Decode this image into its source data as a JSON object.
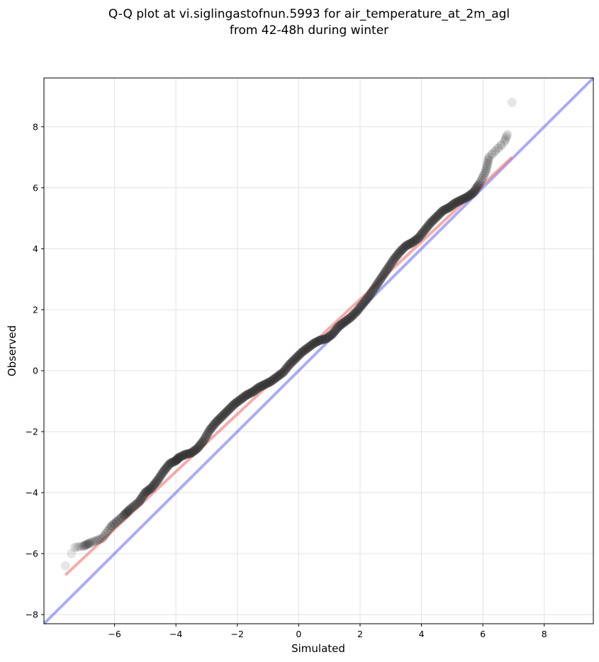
{
  "chart_data": {
    "type": "scatter",
    "title": [
      "Q-Q plot at vi.siglingastofnun.5993 for air_temperature_at_2m_agl",
      "from 42-48h during winter"
    ],
    "xlabel": "Simulated",
    "ylabel": "Observed",
    "xlim": [
      -8.3,
      9.6
    ],
    "ylim": [
      -8.3,
      9.6
    ],
    "xticks": [
      -6,
      -4,
      -2,
      0,
      2,
      4,
      6,
      8
    ],
    "yticks": [
      -8,
      -6,
      -4,
      -2,
      0,
      2,
      4,
      6,
      8
    ],
    "xtick_labels": [
      "−6",
      "−4",
      "−2",
      "0",
      "2",
      "4",
      "6",
      "8"
    ],
    "ytick_labels": [
      "−8",
      "−6",
      "−4",
      "−2",
      "0",
      "2",
      "4",
      "6",
      "8"
    ],
    "grid": true,
    "reference_line": {
      "x": [
        -8.3,
        9.6
      ],
      "y": [
        -8.3,
        9.6
      ],
      "color": "#6666ee"
    },
    "fit_line": {
      "x": [
        -7.6,
        6.95
      ],
      "y": [
        -6.7,
        7.0
      ],
      "color": "#ee6666"
    },
    "quantiles_x": [
      -7.6,
      -7.4,
      -7.3,
      -7.0,
      -6.8,
      -6.4,
      -6.1,
      -5.7,
      -5.5,
      -5.2,
      -5.0,
      -4.8,
      -4.6,
      -4.4,
      -4.2,
      -4.0,
      -3.9,
      -3.7,
      -3.5,
      -3.3,
      -3.1,
      -2.9,
      -2.7,
      -2.5,
      -2.3,
      -2.1,
      -1.9,
      -1.7,
      -1.5,
      -1.3,
      -1.1,
      -0.9,
      -0.7,
      -0.5,
      -0.3,
      -0.1,
      0.1,
      0.3,
      0.5,
      0.7,
      0.9,
      1.1,
      1.3,
      1.5,
      1.7,
      1.9,
      2.1,
      2.3,
      2.5,
      2.7,
      2.9,
      3.1,
      3.3,
      3.5,
      3.7,
      3.9,
      4.1,
      4.3,
      4.5,
      4.7,
      4.9,
      5.1,
      5.3,
      5.5,
      5.7,
      5.9,
      6.1,
      6.2,
      6.7,
      6.8,
      6.95
    ],
    "quantiles_y": [
      -6.4,
      -6.0,
      -5.8,
      -5.75,
      -5.65,
      -5.5,
      -5.1,
      -4.75,
      -4.55,
      -4.3,
      -4.0,
      -3.85,
      -3.6,
      -3.3,
      -3.05,
      -2.95,
      -2.85,
      -2.75,
      -2.7,
      -2.55,
      -2.3,
      -1.95,
      -1.7,
      -1.5,
      -1.3,
      -1.1,
      -0.95,
      -0.8,
      -0.7,
      -0.55,
      -0.45,
      -0.35,
      -0.2,
      -0.05,
      0.2,
      0.4,
      0.6,
      0.75,
      0.9,
      1.0,
      1.05,
      1.2,
      1.45,
      1.6,
      1.75,
      1.95,
      2.2,
      2.45,
      2.75,
      3.05,
      3.35,
      3.65,
      3.9,
      4.1,
      4.2,
      4.35,
      4.6,
      4.85,
      5.05,
      5.25,
      5.35,
      5.5,
      5.6,
      5.7,
      5.85,
      6.15,
      6.55,
      7.0,
      7.5,
      7.75,
      8.8
    ]
  }
}
